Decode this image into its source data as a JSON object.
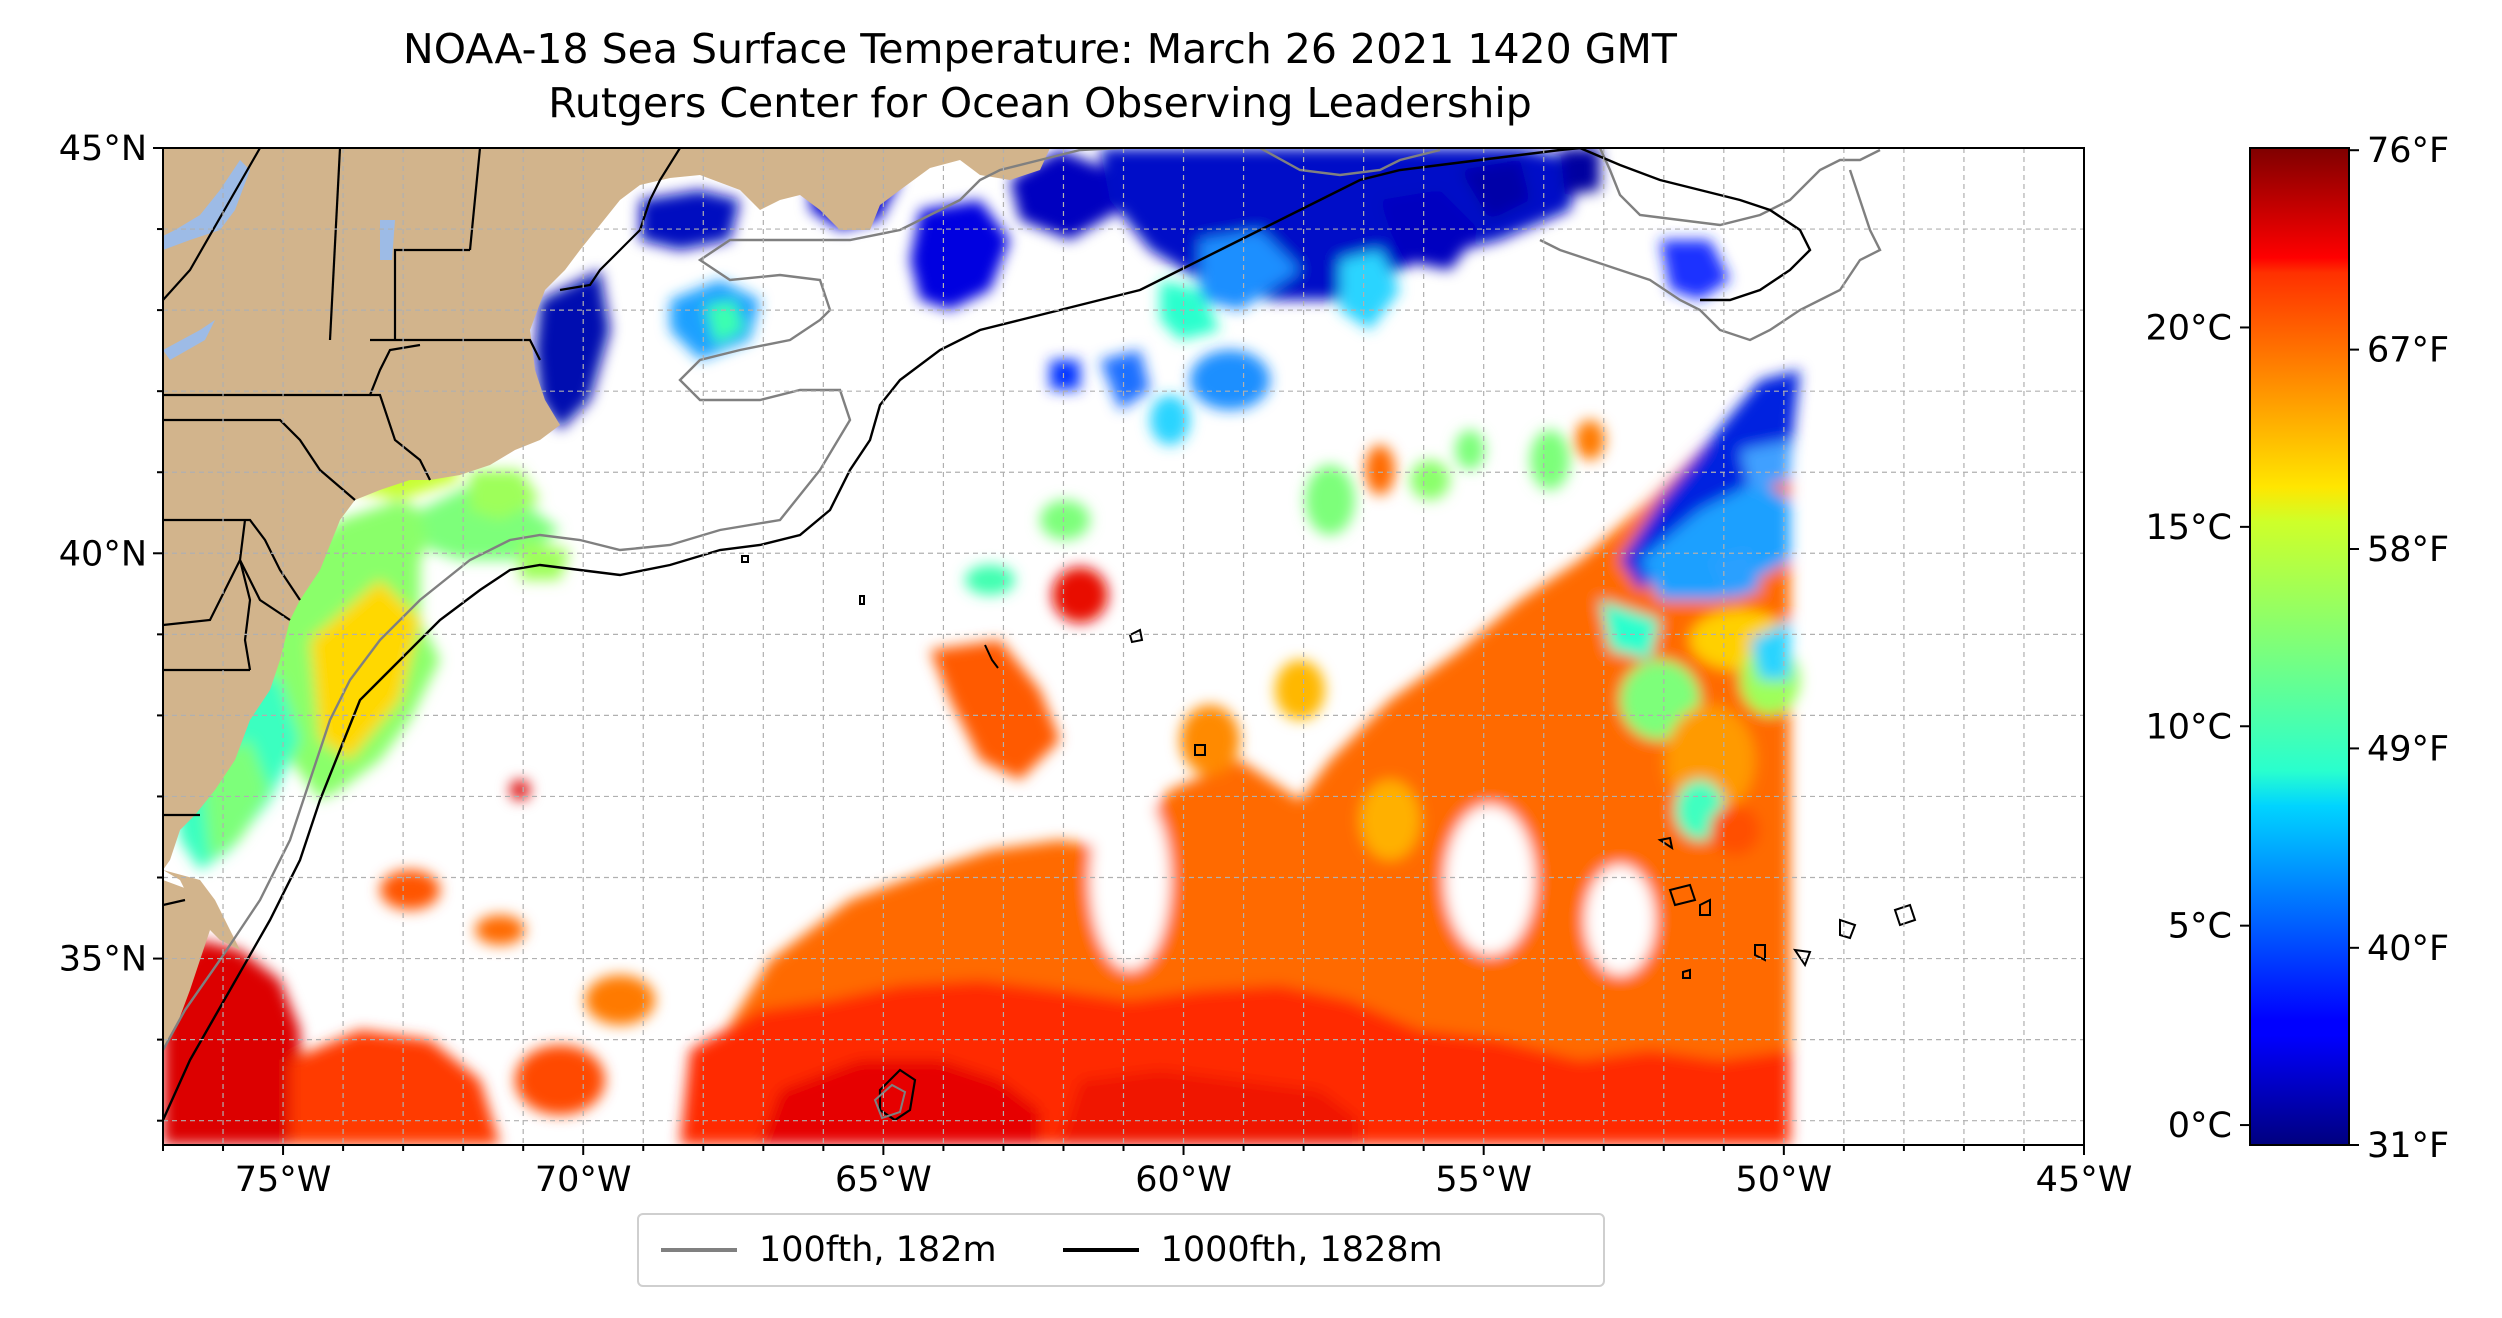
{
  "title": {
    "line1": "NOAA-18 Sea Surface Temperature: March 26 2021 1420 GMT",
    "line2": "Rutgers Center for Ocean Observing Leadership"
  },
  "map": {
    "lon_range": [
      -77,
      -45
    ],
    "lat_range": [
      32.7,
      45
    ],
    "lon_ticks": [
      {
        "value": -75,
        "label": "75°W"
      },
      {
        "value": -70,
        "label": "70°W"
      },
      {
        "value": -65,
        "label": "65°W"
      },
      {
        "value": -60,
        "label": "60°W"
      },
      {
        "value": -55,
        "label": "55°W"
      },
      {
        "value": -50,
        "label": "50°W"
      },
      {
        "value": -45,
        "label": "45°W"
      }
    ],
    "lat_ticks": [
      {
        "value": 35,
        "label": "35°N"
      },
      {
        "value": 40,
        "label": "40°N"
      },
      {
        "value": 45,
        "label": "45°N"
      }
    ],
    "gridlines": true,
    "colors": {
      "land": "#d2b48c",
      "lakes": "#9dbbe6",
      "isobath_100": "#808080",
      "isobath_1000": "#000000"
    }
  },
  "legend": {
    "position": "bottom-center",
    "items": [
      {
        "label": "100fth, 182m",
        "color": "#808080"
      },
      {
        "label": "1000fth, 1828m",
        "color": "#000000"
      }
    ]
  },
  "colorbar": {
    "colormap": "jet",
    "range_c": [
      -0.5,
      24.5
    ],
    "celsius_ticks": [
      {
        "value": 0,
        "label": "0°C"
      },
      {
        "value": 5,
        "label": "5°C"
      },
      {
        "value": 10,
        "label": "10°C"
      },
      {
        "value": 15,
        "label": "15°C"
      },
      {
        "value": 20,
        "label": "20°C"
      }
    ],
    "fahrenheit_ticks": [
      {
        "value": 31,
        "label": "31°F"
      },
      {
        "value": 40,
        "label": "40°F"
      },
      {
        "value": 49,
        "label": "49°F"
      },
      {
        "value": 58,
        "label": "58°F"
      },
      {
        "value": 67,
        "label": "67°F"
      },
      {
        "value": 76,
        "label": "76°F"
      }
    ]
  }
}
